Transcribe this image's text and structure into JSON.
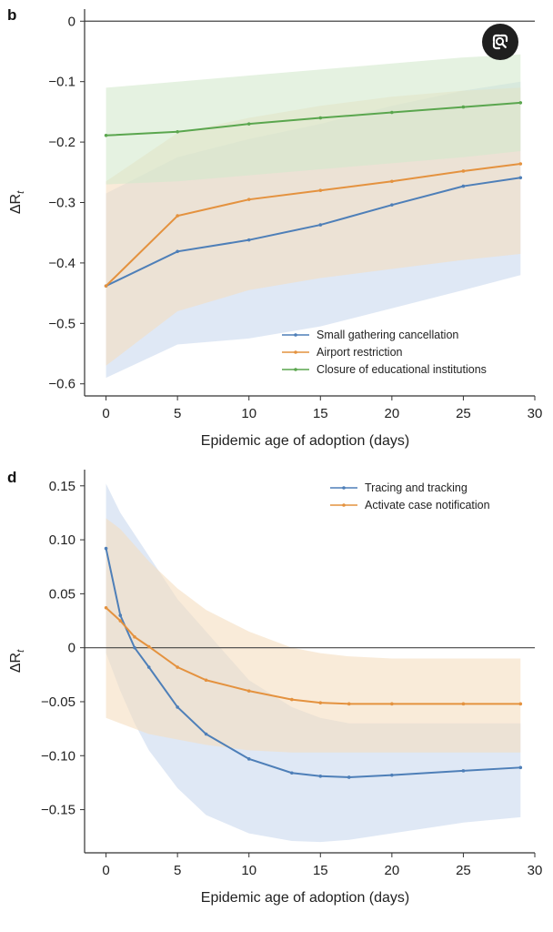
{
  "chart_data": [
    {
      "panel": "b",
      "type": "line",
      "xlabel": "Epidemic age of adoption (days)",
      "ylabel": "ΔR",
      "ylabel_sub": "t",
      "xlim": [
        -1.5,
        30
      ],
      "ylim": [
        -0.62,
        0.02
      ],
      "xticks": [
        0,
        5,
        10,
        15,
        20,
        25,
        30
      ],
      "yticks": [
        0,
        -0.1,
        -0.2,
        -0.3,
        -0.4,
        -0.5,
        -0.6
      ],
      "ytick_labels": [
        "0",
        "−0.1",
        "−0.2",
        "−0.3",
        "−0.4",
        "−0.5",
        "−0.6"
      ],
      "zero_line": 0,
      "legend_position": "bottom-right",
      "x": [
        0,
        5,
        10,
        15,
        20,
        25,
        29
      ],
      "series": [
        {
          "name": "Small gathering cancellation",
          "color": "#4e7fb8",
          "band_color": "#c9d9ef",
          "values": [
            -0.438,
            -0.381,
            -0.362,
            -0.337,
            -0.304,
            -0.273,
            -0.259
          ],
          "lower": [
            -0.59,
            -0.535,
            -0.525,
            -0.505,
            -0.475,
            -0.445,
            -0.42
          ],
          "upper": [
            -0.285,
            -0.225,
            -0.195,
            -0.17,
            -0.14,
            -0.115,
            -0.1
          ]
        },
        {
          "name": "Airport restriction",
          "color": "#e4923f",
          "band_color": "#f5ddc0",
          "values": [
            -0.438,
            -0.322,
            -0.295,
            -0.28,
            -0.265,
            -0.248,
            -0.236
          ],
          "lower": [
            -0.57,
            -0.48,
            -0.445,
            -0.425,
            -0.41,
            -0.395,
            -0.385
          ],
          "upper": [
            -0.265,
            -0.185,
            -0.16,
            -0.14,
            -0.125,
            -0.115,
            -0.11
          ]
        },
        {
          "name": "Closure of educational institutions",
          "color": "#5aa64e",
          "band_color": "#d3e9cd",
          "values": [
            -0.189,
            -0.183,
            -0.17,
            -0.16,
            -0.151,
            -0.142,
            -0.135
          ],
          "lower": [
            -0.27,
            -0.265,
            -0.255,
            -0.245,
            -0.235,
            -0.225,
            -0.215
          ],
          "upper": [
            -0.11,
            -0.1,
            -0.09,
            -0.08,
            -0.07,
            -0.06,
            -0.055
          ]
        }
      ]
    },
    {
      "panel": "d",
      "type": "line",
      "xlabel": "Epidemic age of adoption (days)",
      "ylabel": "ΔR",
      "ylabel_sub": "t",
      "xlim": [
        -1.5,
        30
      ],
      "ylim": [
        -0.19,
        0.165
      ],
      "xticks": [
        0,
        5,
        10,
        15,
        20,
        25,
        30
      ],
      "yticks": [
        0.15,
        0.1,
        0.05,
        0,
        -0.05,
        -0.1,
        -0.15
      ],
      "ytick_labels": [
        "0.15",
        "0.10",
        "0.05",
        "0",
        "−0.05",
        "−0.10",
        "−0.15"
      ],
      "zero_line": 0,
      "legend_position": "top-right",
      "x": [
        0,
        1,
        2,
        3,
        5,
        7,
        10,
        13,
        15,
        17,
        20,
        25,
        29
      ],
      "series": [
        {
          "name": "Tracing and tracking",
          "color": "#4e7fb8",
          "band_color": "#c9d9ef",
          "values": [
            0.092,
            0.03,
            0.0,
            -0.018,
            -0.055,
            -0.08,
            -0.103,
            -0.116,
            -0.119,
            -0.12,
            -0.118,
            -0.114,
            -0.111
          ],
          "lower": [
            -0.005,
            -0.04,
            -0.07,
            -0.095,
            -0.13,
            -0.155,
            -0.172,
            -0.179,
            -0.18,
            -0.178,
            -0.172,
            -0.162,
            -0.157
          ],
          "upper": [
            0.152,
            0.125,
            0.105,
            0.085,
            0.045,
            0.015,
            -0.03,
            -0.055,
            -0.065,
            -0.07,
            -0.07,
            -0.07,
            -0.07
          ]
        },
        {
          "name": "Activate case notification",
          "color": "#e4923f",
          "band_color": "#f5ddc0",
          "values": [
            0.037,
            0.025,
            0.01,
            0.001,
            -0.018,
            -0.03,
            -0.04,
            -0.048,
            -0.051,
            -0.052,
            -0.052,
            -0.052,
            -0.052
          ],
          "lower": [
            -0.065,
            -0.07,
            -0.075,
            -0.08,
            -0.085,
            -0.09,
            -0.095,
            -0.097,
            -0.097,
            -0.097,
            -0.097,
            -0.097,
            -0.097
          ],
          "upper": [
            0.12,
            0.11,
            0.095,
            0.08,
            0.055,
            0.035,
            0.015,
            0.0,
            -0.005,
            -0.008,
            -0.01,
            -0.01,
            -0.01
          ]
        }
      ]
    }
  ],
  "overlay": {
    "lens_button_icon": "google-lens-icon"
  }
}
